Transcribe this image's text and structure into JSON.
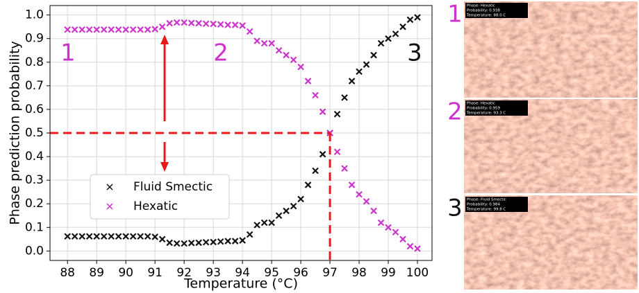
{
  "chart_data": {
    "type": "scatter",
    "xlabel": "Temperature (°C)",
    "ylabel": "Phase prediction probability",
    "xlim": [
      87.4,
      100.5
    ],
    "ylim": [
      -0.04,
      1.04
    ],
    "xticks": [
      88,
      89,
      90,
      91,
      92,
      93,
      94,
      95,
      96,
      97,
      98,
      99,
      100
    ],
    "yticks": [
      {
        "value": 0,
        "label": "0.0"
      },
      {
        "value": 0.1,
        "label": "0.1"
      },
      {
        "value": 0.2,
        "label": "0.2"
      },
      {
        "value": 0.3,
        "label": "0.3"
      },
      {
        "value": 0.4,
        "label": "0.4"
      },
      {
        "value": 0.5,
        "label": "0.5"
      },
      {
        "value": 0.6,
        "label": "0.6"
      },
      {
        "value": 0.7,
        "label": "0.7"
      },
      {
        "value": 0.8,
        "label": "0.8"
      },
      {
        "value": 0.9,
        "label": "0.9"
      },
      {
        "value": 1,
        "label": "1.0"
      }
    ],
    "grid": true,
    "legend": "lower left",
    "x": [
      88,
      88.25,
      88.5,
      88.75,
      89,
      89.25,
      89.5,
      89.75,
      90,
      90.25,
      90.5,
      90.75,
      91,
      91.25,
      91.5,
      91.75,
      92,
      92.25,
      92.5,
      92.75,
      93,
      93.25,
      93.5,
      93.75,
      94,
      94.25,
      94.5,
      94.75,
      95,
      95.25,
      95.5,
      95.75,
      96,
      96.25,
      96.5,
      96.75,
      97,
      97.25,
      97.5,
      97.75,
      98,
      98.25,
      98.5,
      98.75,
      99,
      99.25,
      99.5,
      99.75,
      100
    ],
    "series": [
      {
        "name": "Fluid Smectic",
        "color": "#111111",
        "values": [
          0.062,
          0.062,
          0.062,
          0.062,
          0.062,
          0.062,
          0.062,
          0.062,
          0.062,
          0.062,
          0.062,
          0.062,
          0.06,
          0.05,
          0.035,
          0.032,
          0.032,
          0.034,
          0.035,
          0.037,
          0.038,
          0.04,
          0.042,
          0.042,
          0.045,
          0.07,
          0.11,
          0.12,
          0.12,
          0.15,
          0.17,
          0.19,
          0.22,
          0.28,
          0.34,
          0.41,
          0.5,
          0.58,
          0.65,
          0.72,
          0.76,
          0.79,
          0.83,
          0.88,
          0.9,
          0.92,
          0.95,
          0.98,
          0.99
        ]
      },
      {
        "name": "Hexatic",
        "color": "#cc33cc",
        "values": [
          0.938,
          0.938,
          0.938,
          0.938,
          0.938,
          0.938,
          0.938,
          0.938,
          0.938,
          0.938,
          0.938,
          0.938,
          0.94,
          0.95,
          0.965,
          0.968,
          0.968,
          0.966,
          0.965,
          0.963,
          0.962,
          0.96,
          0.958,
          0.958,
          0.955,
          0.93,
          0.89,
          0.88,
          0.88,
          0.85,
          0.83,
          0.81,
          0.78,
          0.72,
          0.66,
          0.59,
          0.5,
          0.42,
          0.35,
          0.28,
          0.24,
          0.21,
          0.17,
          0.12,
          0.1,
          0.08,
          0.05,
          0.02,
          0.01
        ]
      }
    ],
    "hline": 0.5,
    "vline": 97,
    "annotations": [
      {
        "text": "1",
        "color": "#cc33cc"
      },
      {
        "text": "2",
        "color": "#cc33cc"
      },
      {
        "text": "3",
        "color": "#111111"
      }
    ]
  },
  "panels": [
    {
      "label": "1",
      "color": "#cc33cc",
      "phase": "Phase: Hexatic",
      "probability": "Probability: 0.938",
      "temperature": "Temperature: 88.0 C"
    },
    {
      "label": "2",
      "color": "#cc33cc",
      "phase": "Phase: Hexatic",
      "probability": "Probability: 0.959",
      "temperature": "Temperature: 93.3 C"
    },
    {
      "label": "3",
      "color": "#111111",
      "phase": "Phase: Fluid Smectic",
      "probability": "Probability: 0.984",
      "temperature": "Temperature: 99.8 C"
    }
  ]
}
